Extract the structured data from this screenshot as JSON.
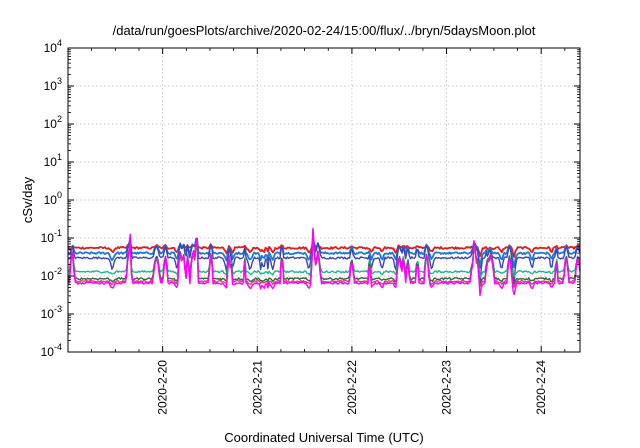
{
  "chart_data": {
    "type": "line",
    "title": "/data/run/goesPlots/archive/2020-02-24/15:00/flux/../bryn/5daysMoon.plot",
    "xlabel": "Coordinated Universal Time (UTC)",
    "ylabel": "cSv/day",
    "yscale": "log",
    "ylim": [
      0.0001,
      10000
    ],
    "xlim": [
      0,
      5.41
    ],
    "grid": true,
    "x_ticks": [
      {
        "x": 1,
        "label": "2020-2-20"
      },
      {
        "x": 2,
        "label": "2020-2-21"
      },
      {
        "x": 3,
        "label": "2020-2-22"
      },
      {
        "x": 4,
        "label": "2020-2-23"
      },
      {
        "x": 5,
        "label": "2020-2-24"
      }
    ],
    "y_ticks": [
      {
        "v": 0.0001,
        "base": "10",
        "exp": "-4"
      },
      {
        "v": 0.001,
        "base": "10",
        "exp": "-3"
      },
      {
        "v": 0.01,
        "base": "10",
        "exp": "-2"
      },
      {
        "v": 0.1,
        "base": "10",
        "exp": "-1"
      },
      {
        "v": 1,
        "base": "10",
        "exp": "0"
      },
      {
        "v": 10,
        "base": "10",
        "exp": "1"
      },
      {
        "v": 100,
        "base": "10",
        "exp": "2"
      },
      {
        "v": 1000,
        "base": "10",
        "exp": "3"
      },
      {
        "v": 10000,
        "base": "10",
        "exp": "4"
      }
    ],
    "series": [
      {
        "color": "#e41a1c",
        "base": 0.055,
        "dip": 0.75,
        "spike": 1.25
      },
      {
        "color": "#1f78d4",
        "base": 0.04,
        "dip": 0.62,
        "spike": 1.9
      },
      {
        "color": "#3a46b4",
        "base": 0.03,
        "dip": 0.45,
        "spike": 2.6
      },
      {
        "color": "#1fb58f",
        "base": 0.013,
        "dip": 0.85,
        "spike": 3.6
      },
      {
        "color": "#2e6b2e",
        "base": 0.0085,
        "dip": 0.85,
        "spike": 5.5
      },
      {
        "color": "#d4407a",
        "base": 0.0072,
        "dip": 0.85,
        "spike": 5.5
      },
      {
        "color": "#ff00ff",
        "base": 0.0065,
        "dip": 0.7,
        "spike": 7.0
      }
    ]
  }
}
